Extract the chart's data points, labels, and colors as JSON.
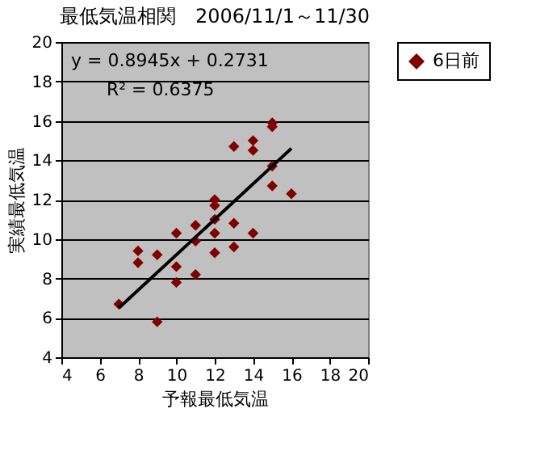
{
  "chart_data": {
    "type": "scatter",
    "title": "最低気温相関　2006/11/1～11/30",
    "xlabel": "予報最低気温",
    "ylabel": "実績最低気温",
    "xlim": [
      4,
      20
    ],
    "xticks": [
      4,
      6,
      8,
      10,
      12,
      14,
      16,
      18,
      20
    ],
    "ylim": [
      4,
      20
    ],
    "yticks": [
      4,
      6,
      8,
      10,
      12,
      14,
      16,
      18,
      20
    ],
    "grid": "y",
    "legend": "right",
    "marker": "diamond",
    "annotations": [
      "y = 0.8945x + 0.2731",
      "R² = 0.6375"
    ],
    "series": [
      {
        "name": "6日前",
        "color": "#800000",
        "x": [
          7,
          8,
          8,
          9,
          9,
          10,
          10,
          10,
          11,
          11,
          11,
          12,
          12,
          12,
          12,
          12,
          13,
          13,
          13,
          14,
          14,
          14,
          15,
          15,
          15,
          15,
          16
        ],
        "values": [
          6.7,
          9.4,
          8.8,
          9.2,
          5.8,
          10.3,
          8.6,
          7.8,
          10.7,
          9.9,
          8.2,
          12.0,
          11.7,
          11.0,
          10.3,
          9.3,
          14.7,
          10.8,
          9.6,
          15.0,
          14.5,
          10.3,
          15.9,
          15.7,
          13.7,
          12.7,
          12.3
        ]
      },
      {
        "type": "line",
        "color": "#000000",
        "x": [
          7,
          16
        ],
        "values": [
          6.5,
          14.6
        ],
        "marker": "none"
      }
    ]
  }
}
